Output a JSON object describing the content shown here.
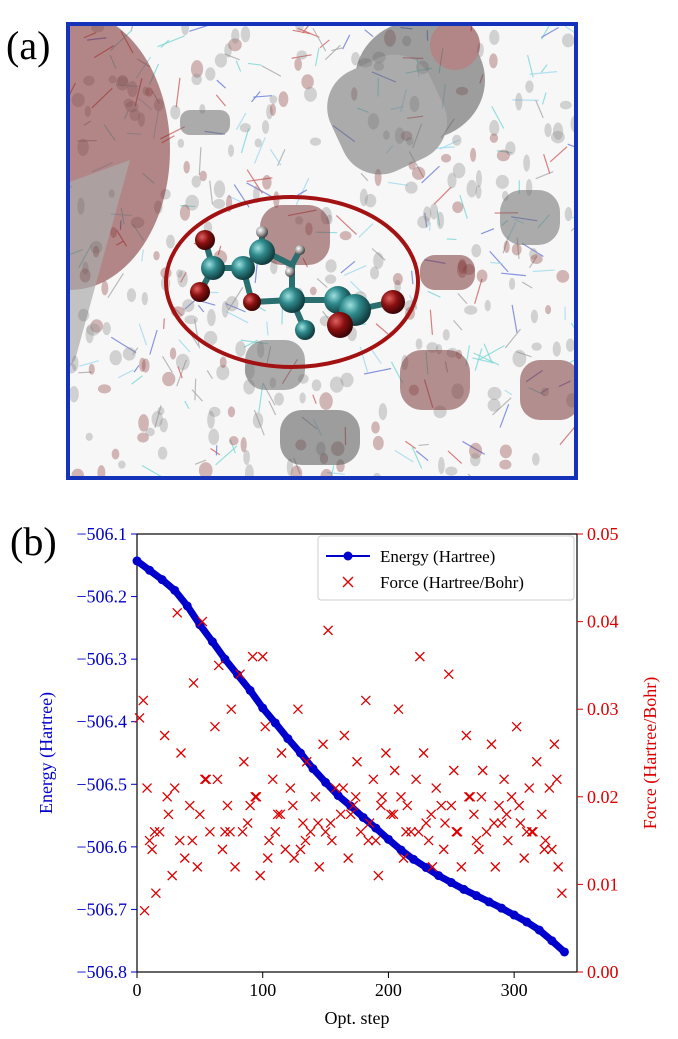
{
  "panel_a": {
    "label": "(a)",
    "frame_color": "#1433b8",
    "highlight_color": "#a31212"
  },
  "panel_b": {
    "label": "(b)"
  },
  "chart_data": {
    "type": "line",
    "xlabel": "Opt. step",
    "xlim": [
      0,
      350
    ],
    "x_ticks": [
      0,
      100,
      200,
      300
    ],
    "y_left": {
      "label": "Energy  (Hartree)",
      "color": "#0000cc",
      "lim": [
        -506.8,
        -506.1
      ],
      "ticks": [
        -506.1,
        -506.2,
        -506.3,
        -506.4,
        -506.5,
        -506.6,
        -506.7,
        -506.8
      ],
      "tick_labels": [
        "−506.1",
        "−506.2",
        "−506.3",
        "−506.4",
        "−506.5",
        "−506.6",
        "−506.7",
        "−506.8"
      ]
    },
    "y_right": {
      "label": "Force  (Hartree/Bohr)",
      "color": "#dd0000",
      "lim": [
        0.0,
        0.05
      ],
      "ticks": [
        0.0,
        0.01,
        0.02,
        0.03,
        0.04,
        0.05
      ],
      "tick_labels": [
        "0.00",
        "0.01",
        "0.02",
        "0.03",
        "0.04",
        "0.05"
      ]
    },
    "legend": {
      "placement": "top-right",
      "entries": [
        "Energy  (Hartree)",
        "Force  (Hartree/Bohr)"
      ]
    },
    "series": [
      {
        "name": "Energy  (Hartree)",
        "axis": "left",
        "marker": "circle",
        "color": "#0000cc",
        "x": [
          0,
          10,
          20,
          30,
          40,
          50,
          60,
          70,
          80,
          90,
          100,
          110,
          120,
          130,
          140,
          150,
          160,
          170,
          180,
          190,
          200,
          210,
          220,
          230,
          240,
          250,
          260,
          270,
          280,
          290,
          300,
          310,
          320,
          330,
          340
        ],
        "y": [
          -506.143,
          -506.158,
          -506.173,
          -506.19,
          -506.215,
          -506.245,
          -506.272,
          -506.3,
          -506.325,
          -506.35,
          -506.378,
          -506.402,
          -506.427,
          -506.45,
          -506.475,
          -506.497,
          -506.518,
          -506.535,
          -506.553,
          -506.57,
          -506.588,
          -506.605,
          -506.62,
          -506.633,
          -506.646,
          -506.657,
          -506.668,
          -506.678,
          -506.688,
          -506.698,
          -506.709,
          -506.72,
          -506.733,
          -506.75,
          -506.768
        ]
      },
      {
        "name": "Force  (Hartree/Bohr)",
        "axis": "right",
        "marker": "x",
        "color": "#dd0000",
        "x": [
          2,
          5,
          8,
          12,
          15,
          18,
          22,
          25,
          28,
          32,
          35,
          38,
          42,
          45,
          48,
          52,
          55,
          58,
          62,
          65,
          68,
          72,
          75,
          78,
          82,
          85,
          88,
          92,
          95,
          98,
          100,
          102,
          105,
          108,
          112,
          115,
          118,
          122,
          125,
          128,
          132,
          135,
          138,
          142,
          145,
          148,
          152,
          155,
          158,
          162,
          165,
          168,
          172,
          175,
          178,
          182,
          185,
          188,
          192,
          195,
          198,
          202,
          205,
          208,
          212,
          215,
          218,
          222,
          225,
          228,
          232,
          235,
          238,
          242,
          245,
          248,
          252,
          255,
          258,
          262,
          265,
          268,
          272,
          275,
          278,
          282,
          285,
          288,
          292,
          295,
          298,
          302,
          305,
          308,
          312,
          315,
          318,
          322,
          325,
          328,
          332,
          335,
          338,
          6,
          24,
          44,
          64,
          84,
          104,
          124,
          144,
          164,
          184,
          204,
          224,
          244,
          264,
          284,
          304,
          324,
          14,
          34,
          54,
          74,
          94,
          114,
          134,
          154,
          174,
          194,
          214,
          234,
          254,
          274,
          294,
          314,
          334,
          10,
          30,
          50,
          70,
          90,
          110,
          130,
          150,
          170,
          190,
          210,
          230,
          250,
          270,
          290,
          310,
          330
        ],
        "y": [
          0.029,
          0.031,
          0.021,
          0.014,
          0.009,
          0.016,
          0.027,
          0.018,
          0.011,
          0.041,
          0.025,
          0.013,
          0.019,
          0.033,
          0.012,
          0.04,
          0.022,
          0.016,
          0.028,
          0.035,
          0.014,
          0.019,
          0.03,
          0.012,
          0.034,
          0.024,
          0.017,
          0.036,
          0.02,
          0.011,
          0.036,
          0.028,
          0.015,
          0.022,
          0.018,
          0.025,
          0.014,
          0.021,
          0.013,
          0.03,
          0.017,
          0.024,
          0.016,
          0.02,
          0.012,
          0.026,
          0.039,
          0.015,
          0.021,
          0.018,
          0.027,
          0.013,
          0.019,
          0.024,
          0.016,
          0.031,
          0.017,
          0.022,
          0.011,
          0.02,
          0.025,
          0.018,
          0.023,
          0.03,
          0.013,
          0.019,
          0.016,
          0.022,
          0.036,
          0.025,
          0.015,
          0.012,
          0.021,
          0.019,
          0.017,
          0.034,
          0.023,
          0.016,
          0.012,
          0.027,
          0.02,
          0.018,
          0.014,
          0.023,
          0.016,
          0.026,
          0.012,
          0.019,
          0.022,
          0.015,
          0.02,
          0.028,
          0.017,
          0.013,
          0.021,
          0.016,
          0.024,
          0.018,
          0.015,
          0.021,
          0.026,
          0.012,
          0.009,
          0.007,
          0.02,
          0.015,
          0.022,
          0.016,
          0.013,
          0.019,
          0.017,
          0.021,
          0.015,
          0.018,
          0.016,
          0.014,
          0.02,
          0.017,
          0.019,
          0.014,
          0.016,
          0.015,
          0.022,
          0.016,
          0.02,
          0.018,
          0.015,
          0.017,
          0.02,
          0.019,
          0.016,
          0.018,
          0.016,
          0.02,
          0.018,
          0.016,
          0.022,
          0.015,
          0.021,
          0.018,
          0.016,
          0.019,
          0.016,
          0.014,
          0.016,
          0.018,
          0.015,
          0.02,
          0.017,
          0.019,
          0.015,
          0.017,
          0.016,
          0.014
        ]
      }
    ]
  }
}
